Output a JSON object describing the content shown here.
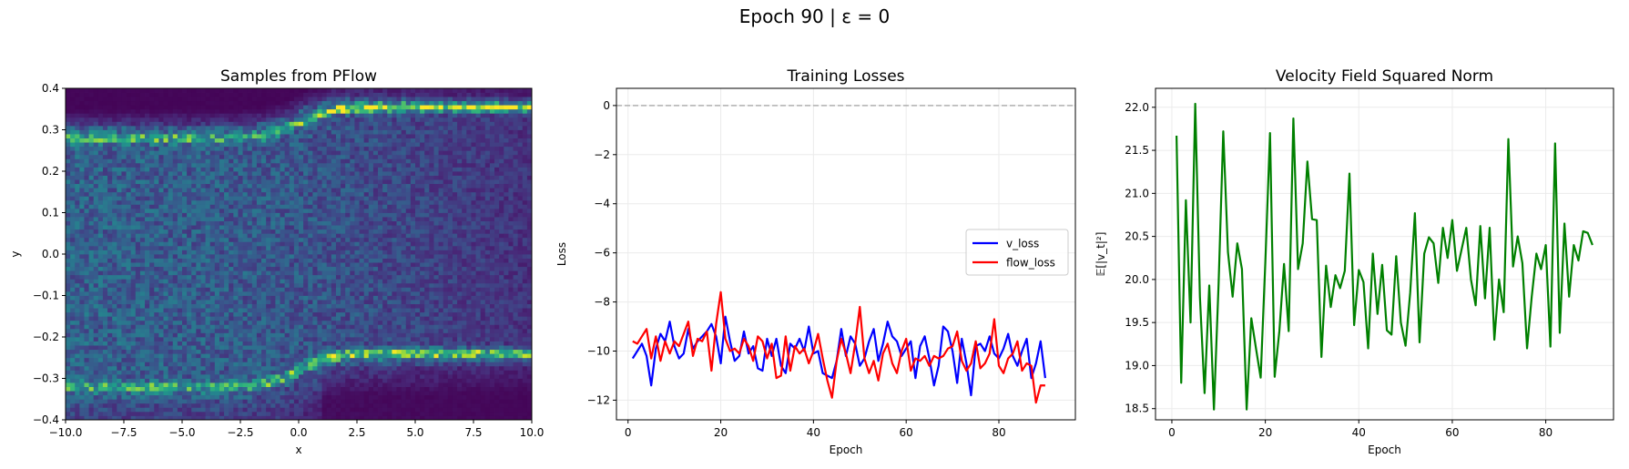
{
  "suptitle": "Epoch 90 | ε = 0",
  "chart_data": [
    {
      "type": "heatmap",
      "title": "Samples from PFlow",
      "xlabel": "x",
      "ylabel": "y",
      "xlim": [
        -10,
        10
      ],
      "ylim": [
        -0.4,
        0.4
      ],
      "xticks": [
        "−10.0",
        "−7.5",
        "−5.0",
        "−2.5",
        "0.0",
        "2.5",
        "5.0",
        "7.5",
        "10.0"
      ],
      "yticks": [
        "−0.4",
        "−0.3",
        "−0.2",
        "−0.1",
        "0.0",
        "0.1",
        "0.2",
        "0.3",
        "0.4"
      ],
      "colormap": "viridis",
      "bins": [
        100,
        80
      ],
      "description_modes": {
        "upper_band": {
          "left_y": 0.28,
          "right_y": 0.355,
          "transition_x": [
            -1.5,
            1.5
          ]
        },
        "lower_band": {
          "left_y": -0.32,
          "right_y": -0.24,
          "transition_x": [
            -1.5,
            1.5
          ]
        }
      }
    },
    {
      "type": "line",
      "title": "Training Losses",
      "xlabel": "Epoch",
      "ylabel": "Loss",
      "xlim": [
        -2.5,
        96.5
      ],
      "ylim": [
        -12.8,
        0.7
      ],
      "xticks": [
        0,
        20,
        40,
        60,
        80
      ],
      "yticks": [
        0,
        -2,
        -4,
        -6,
        -8,
        -10,
        -12
      ],
      "hline": {
        "y": 0,
        "color": "#b0b0b0"
      },
      "legend": "center-right",
      "grid": true,
      "x": [
        1,
        2,
        3,
        4,
        5,
        6,
        7,
        8,
        9,
        10,
        11,
        12,
        13,
        14,
        15,
        16,
        17,
        18,
        19,
        20,
        21,
        22,
        23,
        24,
        25,
        26,
        27,
        28,
        29,
        30,
        31,
        32,
        33,
        34,
        35,
        36,
        37,
        38,
        39,
        40,
        41,
        42,
        43,
        44,
        45,
        46,
        47,
        48,
        49,
        50,
        51,
        52,
        53,
        54,
        55,
        56,
        57,
        58,
        59,
        60,
        61,
        62,
        63,
        64,
        65,
        66,
        67,
        68,
        69,
        70,
        71,
        72,
        73,
        74,
        75,
        76,
        77,
        78,
        79,
        80,
        81,
        82,
        83,
        84,
        85,
        86,
        87,
        88,
        89,
        90
      ],
      "series": [
        {
          "name": "v_loss",
          "color": "#0000ff",
          "values": [
            -10.3,
            -10.0,
            -9.7,
            -10.2,
            -11.4,
            -9.9,
            -9.3,
            -9.6,
            -8.8,
            -9.8,
            -10.3,
            -10.1,
            -9.1,
            -9.9,
            -9.6,
            -9.4,
            -9.2,
            -8.9,
            -9.4,
            -10.5,
            -8.6,
            -9.6,
            -10.4,
            -10.2,
            -9.2,
            -10.1,
            -9.8,
            -10.7,
            -10.8,
            -9.5,
            -10.2,
            -9.5,
            -10.6,
            -10.9,
            -9.7,
            -9.9,
            -9.5,
            -10.0,
            -9.0,
            -10.1,
            -10.0,
            -10.9,
            -11.0,
            -11.1,
            -10.4,
            -9.1,
            -10.2,
            -9.4,
            -9.7,
            -10.6,
            -10.3,
            -9.6,
            -9.1,
            -10.4,
            -9.7,
            -8.8,
            -9.4,
            -9.6,
            -10.2,
            -9.9,
            -9.6,
            -11.1,
            -9.8,
            -9.4,
            -10.3,
            -11.4,
            -10.6,
            -9.0,
            -9.2,
            -10.0,
            -11.3,
            -9.5,
            -10.5,
            -11.8,
            -9.8,
            -9.7,
            -10.0,
            -9.4,
            -10.1,
            -10.3,
            -9.9,
            -9.3,
            -10.2,
            -10.6,
            -10.0,
            -9.5,
            -11.1,
            -10.5,
            -9.6,
            -11.1
          ]
        },
        {
          "name": "flow_loss",
          "color": "#ff0000",
          "values": [
            -9.6,
            -9.7,
            -9.4,
            -9.1,
            -10.3,
            -9.4,
            -10.4,
            -9.6,
            -10.1,
            -9.6,
            -9.8,
            -9.3,
            -8.8,
            -10.2,
            -9.5,
            -9.6,
            -9.2,
            -10.8,
            -8.9,
            -7.6,
            -9.5,
            -10.0,
            -9.9,
            -10.1,
            -9.5,
            -9.8,
            -10.4,
            -9.4,
            -9.6,
            -10.3,
            -9.7,
            -11.1,
            -11.0,
            -9.4,
            -10.8,
            -9.8,
            -10.1,
            -9.9,
            -10.5,
            -10.0,
            -9.3,
            -10.3,
            -11.2,
            -11.9,
            -10.4,
            -9.5,
            -10.1,
            -10.9,
            -9.7,
            -8.2,
            -10.3,
            -10.9,
            -10.4,
            -11.2,
            -10.1,
            -9.7,
            -10.5,
            -10.9,
            -10.0,
            -9.5,
            -10.8,
            -10.3,
            -10.4,
            -10.2,
            -10.6,
            -10.2,
            -10.3,
            -10.2,
            -9.9,
            -9.8,
            -9.2,
            -10.4,
            -10.8,
            -10.5,
            -9.6,
            -10.7,
            -10.5,
            -10.1,
            -8.7,
            -10.6,
            -10.9,
            -10.3,
            -10.1,
            -9.6,
            -10.8,
            -10.5,
            -10.6,
            -12.1,
            -11.4,
            -11.4
          ]
        }
      ]
    },
    {
      "type": "line",
      "title": "Velocity Field Squared Norm",
      "xlabel": "Epoch",
      "ylabel": "𝔼[|v_t|²]",
      "xlim": [
        -3.5,
        94.5
      ],
      "ylim": [
        18.37,
        22.22
      ],
      "xticks": [
        0,
        20,
        40,
        60,
        80
      ],
      "yticks": [
        18.5,
        19.0,
        19.5,
        20.0,
        20.5,
        21.0,
        21.5,
        22.0
      ],
      "grid": true,
      "x": [
        1,
        2,
        3,
        4,
        5,
        6,
        7,
        8,
        9,
        10,
        11,
        12,
        13,
        14,
        15,
        16,
        17,
        18,
        19,
        20,
        21,
        22,
        23,
        24,
        25,
        26,
        27,
        28,
        29,
        30,
        31,
        32,
        33,
        34,
        35,
        36,
        37,
        38,
        39,
        40,
        41,
        42,
        43,
        44,
        45,
        46,
        47,
        48,
        49,
        50,
        51,
        52,
        53,
        54,
        55,
        56,
        57,
        58,
        59,
        60,
        61,
        62,
        63,
        64,
        65,
        66,
        67,
        68,
        69,
        70,
        71,
        72,
        73,
        74,
        75,
        76,
        77,
        78,
        79,
        80,
        81,
        82,
        83,
        84,
        85,
        86,
        87,
        88,
        89,
        90
      ],
      "series": [
        {
          "color": "#008000",
          "values": [
            21.67,
            18.8,
            20.92,
            19.5,
            22.04,
            19.8,
            18.68,
            19.93,
            18.49,
            19.95,
            21.72,
            20.32,
            19.8,
            20.42,
            20.12,
            18.49,
            19.55,
            19.2,
            18.86,
            20.2,
            21.7,
            18.87,
            19.4,
            20.18,
            19.4,
            21.87,
            20.12,
            20.42,
            21.37,
            20.7,
            20.69,
            19.1,
            20.16,
            19.68,
            20.05,
            19.9,
            20.1,
            21.23,
            19.47,
            20.11,
            19.97,
            19.2,
            20.3,
            19.6,
            20.17,
            19.41,
            19.36,
            20.27,
            19.5,
            19.23,
            19.85,
            20.77,
            19.27,
            20.3,
            20.49,
            20.42,
            19.96,
            20.6,
            20.25,
            20.69,
            20.1,
            20.35,
            20.6,
            20.0,
            19.7,
            20.62,
            19.78,
            20.6,
            19.3,
            20.0,
            19.62,
            21.63,
            20.15,
            20.5,
            20.19,
            19.2,
            19.8,
            20.3,
            20.12,
            20.4,
            19.22,
            21.58,
            19.38,
            20.65,
            19.8,
            20.4,
            20.22,
            20.56,
            20.54,
            20.4
          ]
        }
      ]
    }
  ]
}
